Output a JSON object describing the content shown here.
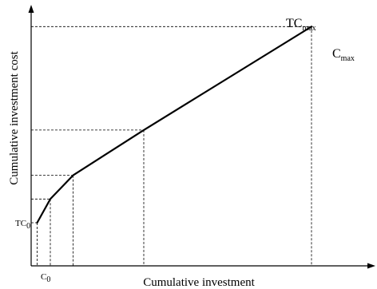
{
  "chart_data": {
    "type": "line",
    "title": "",
    "xlabel": "Cumulative investment",
    "ylabel": "Cumulative investment cost",
    "grid": false,
    "legend": "none",
    "axis_arrows": true,
    "xlim": [
      0,
      100
    ],
    "ylim": [
      0,
      100
    ],
    "series": [
      {
        "values": [
          {
            "x": 2.5,
            "y": 20
          },
          {
            "x": 8,
            "y": 31
          },
          {
            "x": 17.5,
            "y": 42
          },
          {
            "x": 47,
            "y": 63
          },
          {
            "x": 117,
            "y": 111
          }
        ]
      }
    ],
    "guides": {
      "vertical_dashed_at_x": [
        2.5,
        8,
        17.5,
        47,
        117
      ],
      "horizontal_dashed_at_y": [
        20,
        31,
        42,
        63,
        111
      ]
    },
    "labels": {
      "tc0": {
        "base": "TC",
        "sub": "0"
      },
      "c0": {
        "base": "C",
        "sub": "0"
      },
      "tcmax": {
        "base": "TC",
        "sub": "max"
      },
      "cmax": {
        "base": "C",
        "sub": "max"
      }
    },
    "colors": {
      "line": "#000000",
      "background": "#ffffff"
    }
  }
}
